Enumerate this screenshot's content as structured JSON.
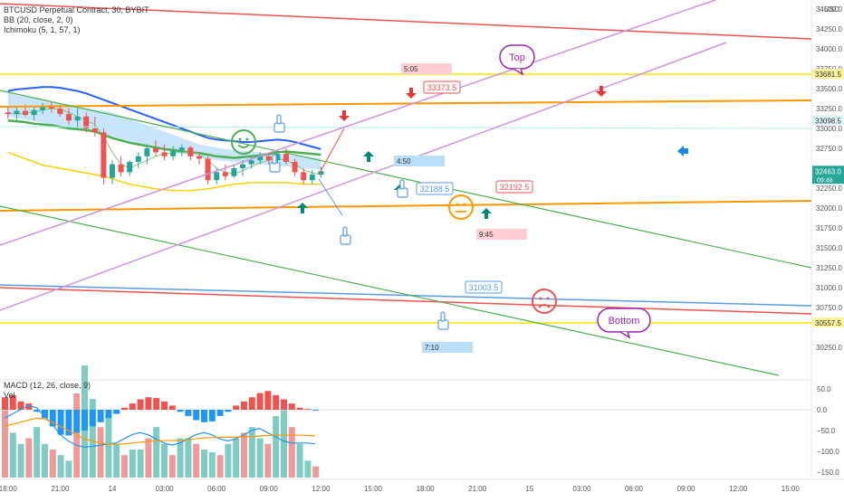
{
  "header": {
    "symbol_line": "BTCUSD Perpetual Contract, 30, BYBIT",
    "bb_line": "BB (20, close, 2, 0)",
    "ichimoku_line": "Ichimoku (5, 1, 57, 1)",
    "currency": "USD",
    "menu_glyph": "⋮"
  },
  "macd_header": {
    "macd_line": "MACD (12, 26, close, 9)",
    "vol_line": "Vol"
  },
  "colors": {
    "up": "#26a69a",
    "down": "#ef5350",
    "bb": "#2962ff",
    "ichimoku_fast": "#f5d300",
    "ichimoku_slow": "#4caf50",
    "cloud": "#bbdefb",
    "orange": "#ff9800",
    "violet": "#ce93d8",
    "red_line": "#ef5350",
    "blue_line": "#5b9be6",
    "yellow": "#ffeb3b",
    "macd_line": "#2196f3",
    "signal_line": "#ff9800"
  },
  "chart_data": {
    "type": "candlestick",
    "price_axis": {
      "ticks": [
        34500,
        34250,
        34000,
        33750,
        33500,
        33250,
        33000,
        32750,
        32250,
        32000,
        31750,
        31500,
        31250,
        31000,
        30750,
        30250
      ],
      "tick_labels": [
        "34500.0",
        "34250.0",
        "34000.0",
        "33750.0",
        "33500.0",
        "33250.0",
        "33000.0",
        "32750.0",
        "32250.0",
        "32000.0",
        "31750.0",
        "31500.0",
        "31250.0",
        "31000.0",
        "30750.0",
        "30250.0"
      ],
      "badges": [
        {
          "label": "33681.5",
          "value": 33681.5,
          "bg": "#fff59d",
          "fg": "#333333"
        },
        {
          "label": "33098.5",
          "value": 33098.5,
          "bg": "#e0f7fa",
          "fg": "#333333"
        },
        {
          "label": "32463.0",
          "value": 32463.0,
          "bg": "#26a69a",
          "fg": "#ffffff",
          "sub": "09:46"
        },
        {
          "label": "30557.5",
          "value": 30557.5,
          "bg": "#fff59d",
          "fg": "#333333"
        }
      ]
    },
    "macd_axis": {
      "ticks": [
        50,
        0,
        -50,
        -100,
        -150
      ],
      "tick_labels": [
        "50.0",
        "0.0",
        "−50.0",
        "−100.0",
        "−150.0"
      ]
    },
    "time_axis": {
      "labels": [
        "18:00",
        "21:00",
        "14",
        "03:00",
        "06:00",
        "09:00",
        "12:00",
        "15:00",
        "18:00",
        "21:00",
        "15",
        "03:00",
        "06:00",
        "09:00",
        "12:00",
        "15:00"
      ],
      "bar_index": [
        0,
        6,
        12,
        18,
        24,
        30,
        36,
        42,
        48,
        54,
        60,
        66,
        72,
        78,
        84,
        90
      ]
    },
    "candles": [
      {
        "o": 33200,
        "h": 33280,
        "l": 33120,
        "c": 33180
      },
      {
        "o": 33180,
        "h": 33260,
        "l": 33100,
        "c": 33220
      },
      {
        "o": 33220,
        "h": 33300,
        "l": 33150,
        "c": 33170
      },
      {
        "o": 33170,
        "h": 33260,
        "l": 33100,
        "c": 33230
      },
      {
        "o": 33230,
        "h": 33320,
        "l": 33180,
        "c": 33270
      },
      {
        "o": 33270,
        "h": 33340,
        "l": 33200,
        "c": 33250
      },
      {
        "o": 33250,
        "h": 33300,
        "l": 33150,
        "c": 33180
      },
      {
        "o": 33180,
        "h": 33250,
        "l": 33050,
        "c": 33100
      },
      {
        "o": 33100,
        "h": 33250,
        "l": 33000,
        "c": 33150
      },
      {
        "o": 33150,
        "h": 33200,
        "l": 32950,
        "c": 33000
      },
      {
        "o": 33000,
        "h": 33150,
        "l": 32900,
        "c": 32950
      },
      {
        "o": 32950,
        "h": 33000,
        "l": 32300,
        "c": 32380
      },
      {
        "o": 32380,
        "h": 32600,
        "l": 32300,
        "c": 32550
      },
      {
        "o": 32550,
        "h": 32650,
        "l": 32400,
        "c": 32450
      },
      {
        "o": 32450,
        "h": 32600,
        "l": 32400,
        "c": 32580
      },
      {
        "o": 32580,
        "h": 32700,
        "l": 32500,
        "c": 32650
      },
      {
        "o": 32650,
        "h": 32800,
        "l": 32550,
        "c": 32750
      },
      {
        "o": 32750,
        "h": 32850,
        "l": 32650,
        "c": 32700
      },
      {
        "o": 32700,
        "h": 32800,
        "l": 32600,
        "c": 32650
      },
      {
        "o": 32650,
        "h": 32780,
        "l": 32600,
        "c": 32720
      },
      {
        "o": 32720,
        "h": 32800,
        "l": 32650,
        "c": 32760
      },
      {
        "o": 32760,
        "h": 32780,
        "l": 32600,
        "c": 32650
      },
      {
        "o": 32650,
        "h": 32700,
        "l": 32550,
        "c": 32620
      },
      {
        "o": 32620,
        "h": 32650,
        "l": 32300,
        "c": 32350
      },
      {
        "o": 32350,
        "h": 32500,
        "l": 32300,
        "c": 32450
      },
      {
        "o": 32450,
        "h": 32550,
        "l": 32350,
        "c": 32400
      },
      {
        "o": 32400,
        "h": 32550,
        "l": 32380,
        "c": 32500
      },
      {
        "o": 32500,
        "h": 32600,
        "l": 32400,
        "c": 32550
      },
      {
        "o": 32550,
        "h": 32650,
        "l": 32500,
        "c": 32600
      },
      {
        "o": 32600,
        "h": 32700,
        "l": 32550,
        "c": 32650
      },
      {
        "o": 32650,
        "h": 32700,
        "l": 32550,
        "c": 32600
      },
      {
        "o": 32600,
        "h": 32700,
        "l": 32550,
        "c": 32680
      },
      {
        "o": 32680,
        "h": 32750,
        "l": 32550,
        "c": 32580
      },
      {
        "o": 32580,
        "h": 32620,
        "l": 32400,
        "c": 32450
      },
      {
        "o": 32450,
        "h": 32500,
        "l": 32300,
        "c": 32350
      },
      {
        "o": 32350,
        "h": 32480,
        "l": 32300,
        "c": 32420
      },
      {
        "o": 32420,
        "h": 32520,
        "l": 32380,
        "c": 32463
      }
    ],
    "bb_upper": [
      33470,
      33490,
      33500,
      33510,
      33520,
      33520,
      33510,
      33490,
      33470,
      33440,
      33400,
      33360,
      33320,
      33280,
      33240,
      33200,
      33160,
      33120,
      33080,
      33040,
      33000,
      32960,
      32920,
      32880,
      32860,
      32850,
      32840,
      32830,
      32830,
      32840,
      32850,
      32860,
      32850,
      32830,
      32800,
      32770,
      32740
    ],
    "bb_middle": [
      33080,
      33070,
      33060,
      33050,
      33040,
      33030,
      33020,
      33000,
      32980,
      32950,
      32920,
      32880,
      32840,
      32800,
      32760,
      32720,
      32690,
      32670,
      32650,
      32630,
      32610,
      32590,
      32570,
      32550,
      32540,
      32540,
      32540,
      32550,
      32560,
      32570,
      32580,
      32590,
      32580,
      32560,
      32540,
      32520,
      32500
    ],
    "bb_lower": [
      32700,
      32660,
      32620,
      32580,
      32540,
      32520,
      32500,
      32480,
      32460,
      32440,
      32420,
      32400,
      32370,
      32330,
      32300,
      32280,
      32260,
      32240,
      32230,
      32220,
      32220,
      32220,
      32230,
      32240,
      32260,
      32280,
      32300,
      32310,
      32320,
      32320,
      32320,
      32320,
      32320,
      32310,
      32300,
      32300,
      32300
    ],
    "ichimoku_fast": [
      33200,
      33180,
      33190,
      33210,
      33230,
      33250,
      33240,
      33200,
      33150,
      33100,
      33050,
      32900,
      32700,
      32550,
      32500,
      32550,
      32600,
      32650,
      32680,
      32690,
      32700,
      32700,
      32680,
      32600,
      32500,
      32450,
      32430,
      32470,
      32520,
      32570,
      32600,
      32620,
      32600,
      32550,
      32480,
      32440,
      32420
    ],
    "ichimoku_slow": [
      33100,
      33090,
      33080,
      33060,
      33050,
      33040,
      33020,
      33000,
      32990,
      32980,
      32960,
      32920,
      32880,
      32850,
      32820,
      32800,
      32780,
      32760,
      32740,
      32730,
      32710,
      32700,
      32690,
      32670,
      32650,
      32640,
      32630,
      32640,
      32650,
      32660,
      32680,
      32700,
      32710,
      32700,
      32690,
      32680,
      32670
    ],
    "cloud_top": [
      33450,
      33420,
      33400,
      33380,
      33360,
      33340,
      33320,
      33300,
      33280,
      33260,
      33240,
      33220,
      33200,
      33160,
      33120,
      33080,
      33040,
      33000,
      32960,
      32920,
      32880,
      32840,
      32800,
      32780,
      32760,
      32740,
      32730,
      32720,
      32710,
      32700,
      32690,
      32680,
      32670,
      32660,
      32650,
      32640,
      32630
    ],
    "cloud_bottom": [
      33150,
      33130,
      33110,
      33090,
      33070,
      33050,
      33030,
      33010,
      32990,
      32970,
      32950,
      32930,
      32900,
      32870,
      32840,
      32810,
      32780,
      32750,
      32720,
      32700,
      32680,
      32660,
      32640,
      32620,
      32600,
      32590,
      32580,
      32570,
      32560,
      32550,
      32540,
      32530,
      32520,
      32510,
      32500,
      32490,
      32480
    ],
    "macd_hist": [
      30,
      35,
      20,
      15,
      -5,
      -20,
      -40,
      -60,
      -62,
      -55,
      -50,
      -40,
      -30,
      -20,
      -10,
      5,
      15,
      25,
      30,
      28,
      20,
      10,
      -5,
      -15,
      -25,
      -30,
      -28,
      -15,
      -5,
      10,
      20,
      30,
      40,
      45,
      35,
      25,
      15,
      5,
      2,
      -2
    ],
    "macd_line": [
      -20,
      -10,
      0,
      10,
      5,
      -15,
      -35,
      -60,
      -75,
      -85,
      -90,
      -88,
      -85,
      -82,
      -80,
      -70,
      -60,
      -55,
      -60,
      -70,
      -80,
      -85,
      -80,
      -70,
      -60,
      -55,
      -60,
      -70,
      -75,
      -70,
      -60,
      -50,
      -45,
      -55,
      -65,
      -75,
      -80,
      -80,
      -80,
      -82
    ],
    "signal_line": [
      -40,
      -35,
      -30,
      -25,
      -20,
      -22,
      -30,
      -40,
      -50,
      -60,
      -70,
      -75,
      -80,
      -82,
      -83,
      -82,
      -80,
      -78,
      -76,
      -75,
      -74,
      -74,
      -74,
      -72,
      -70,
      -68,
      -67,
      -66,
      -66,
      -66,
      -65,
      -64,
      -63,
      -62,
      -61,
      -61,
      -61,
      -61,
      -62,
      -63
    ],
    "volume": [
      120,
      80,
      60,
      70,
      90,
      60,
      50,
      40,
      30,
      150,
      200,
      140,
      90,
      110,
      60,
      40,
      50,
      50,
      70,
      90,
      60,
      40,
      70,
      70,
      60,
      50,
      45,
      40,
      60,
      70,
      80,
      90,
      70,
      60,
      110,
      120,
      90,
      60,
      30,
      20
    ],
    "annotations": {
      "price_labels": [
        {
          "text": "33373.5",
          "color": "#ef5350"
        },
        {
          "text": "32188.5",
          "color": "#5b9be6"
        },
        {
          "text": "32192.5",
          "color": "#ef5350"
        },
        {
          "text": "31003.5",
          "color": "#5b9be6"
        }
      ],
      "time_labels": [
        "5:05",
        "4:50",
        "9:45",
        "7:10"
      ],
      "callouts": [
        {
          "text": "Top"
        },
        {
          "text": "Bottom"
        }
      ]
    }
  }
}
